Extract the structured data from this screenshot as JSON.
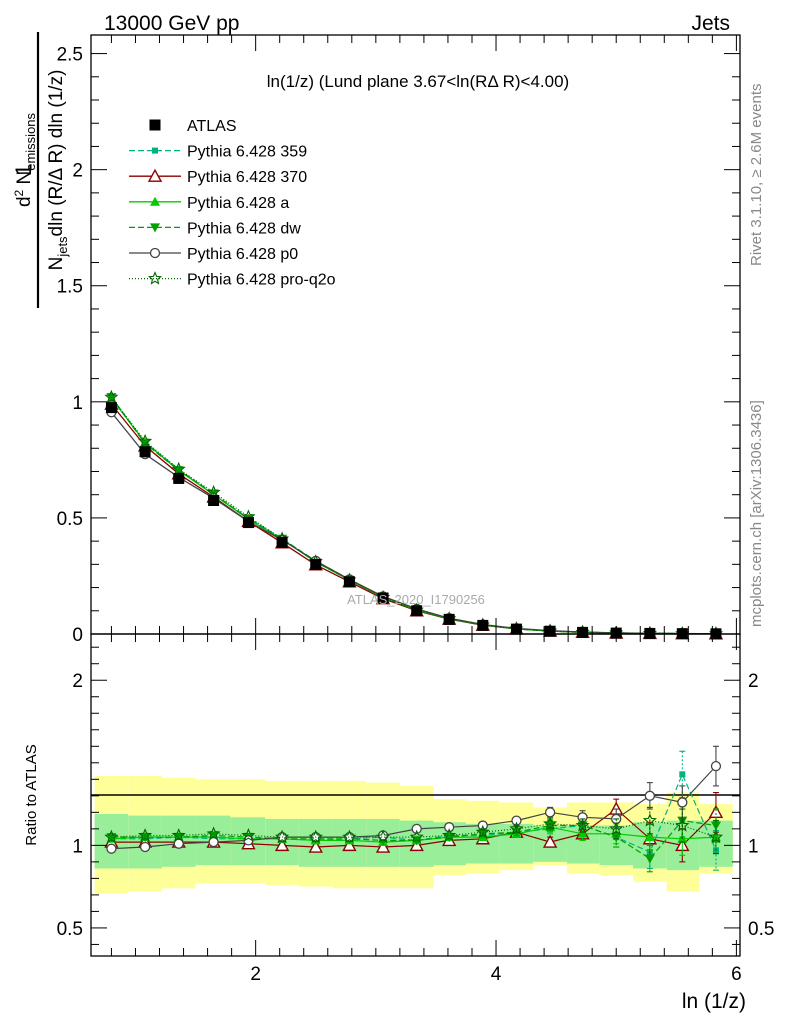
{
  "header": {
    "left": "13000 GeV pp",
    "right": "Jets"
  },
  "side_text": {
    "rivet": "Rivet 3.1.10, ≥ 2.6M events",
    "mcplots": "mcplots.cern.ch [arXiv:1306.3436]"
  },
  "watermark": "ATLAS_2020_I1790256",
  "colors": {
    "atlas": "#000000",
    "p359": "#00b380",
    "p370": "#8b0000",
    "pa": "#00cc00",
    "pdw": "#00a000",
    "pp0": "#444444",
    "pq2o": "#006600",
    "band_green": "#99ee99",
    "band_yellow": "#ffff99"
  },
  "chart_data": [
    {
      "type": "line",
      "title": "ln(1/z) (Lund plane 3.67<ln(RΔ R)<4.00)",
      "xlabel": "ln (1/z)",
      "ylabel": "1/N_jets d²N_emissions/dln(R/ΔR) dln(1/z)",
      "xlim": [
        0.63,
        6.03
      ],
      "ylim": [
        0,
        2.58
      ],
      "x_ticks": [
        "2",
        "4",
        "6"
      ],
      "y_ticks": [
        "0",
        "0.5",
        "1",
        "1.5",
        "2",
        "2.5"
      ],
      "legend_position": "top-left",
      "x": [
        0.8,
        1.08,
        1.36,
        1.65,
        1.94,
        2.22,
        2.5,
        2.78,
        3.06,
        3.34,
        3.61,
        3.89,
        4.17,
        4.45,
        4.72,
        5.0,
        5.28,
        5.55,
        5.83
      ],
      "series": [
        {
          "name": "ATLAS",
          "key": "atlas",
          "marker": "square-filled",
          "dash": "none",
          "values": [
            0.975,
            0.785,
            0.67,
            0.575,
            0.48,
            0.395,
            0.3,
            0.225,
            0.155,
            0.1,
            0.063,
            0.037,
            0.021,
            0.012,
            0.007,
            0.004,
            0.0025,
            0.0015,
            0.0008
          ]
        },
        {
          "name": "Pythia 6.428 359",
          "key": "p359",
          "marker": "square-small",
          "dash": "6,3",
          "values": [
            1.02,
            0.825,
            0.71,
            0.6,
            0.5,
            0.41,
            0.315,
            0.235,
            0.16,
            0.104,
            0.066,
            0.039,
            0.022,
            0.013,
            0.0075,
            0.0043,
            0.0027,
            0.0016,
            0.0009
          ]
        },
        {
          "name": "Pythia 6.428 370",
          "key": "p370",
          "marker": "triangle-open",
          "dash": "none",
          "values": [
            0.99,
            0.81,
            0.69,
            0.59,
            0.485,
            0.393,
            0.298,
            0.225,
            0.152,
            0.1,
            0.064,
            0.038,
            0.022,
            0.0125,
            0.0073,
            0.0042,
            0.0026,
            0.0015,
            0.0008
          ]
        },
        {
          "name": "Pythia 6.428 a",
          "key": "pa",
          "marker": "triangle-filled",
          "dash": "none",
          "values": [
            1.015,
            0.825,
            0.705,
            0.6,
            0.495,
            0.408,
            0.31,
            0.232,
            0.158,
            0.103,
            0.066,
            0.039,
            0.022,
            0.013,
            0.0075,
            0.0043,
            0.0027,
            0.0016,
            0.0009
          ]
        },
        {
          "name": "Pythia 6.428 dw",
          "key": "pdw",
          "marker": "triangle-down-filled",
          "dash": "6,3",
          "values": [
            1.02,
            0.82,
            0.705,
            0.605,
            0.495,
            0.41,
            0.31,
            0.233,
            0.158,
            0.103,
            0.066,
            0.039,
            0.022,
            0.013,
            0.0075,
            0.0043,
            0.0027,
            0.0016,
            0.0009
          ]
        },
        {
          "name": "Pythia 6.428 p0",
          "key": "pp0",
          "marker": "circle-open",
          "dash": "none",
          "values": [
            0.955,
            0.775,
            0.675,
            0.585,
            0.485,
            0.405,
            0.315,
            0.235,
            0.162,
            0.108,
            0.068,
            0.041,
            0.024,
            0.0145,
            0.0085,
            0.0046,
            0.0032,
            0.002,
            0.001
          ]
        },
        {
          "name": "Pythia 6.428 pro-q2o",
          "key": "pq2o",
          "marker": "star-open",
          "dash": "1,2",
          "values": [
            1.02,
            0.83,
            0.71,
            0.61,
            0.505,
            0.41,
            0.312,
            0.233,
            0.158,
            0.103,
            0.066,
            0.039,
            0.022,
            0.013,
            0.0075,
            0.0043,
            0.0027,
            0.0016,
            0.0009
          ]
        }
      ]
    },
    {
      "type": "line",
      "ylabel": "Ratio to ATLAS",
      "xlim": [
        0.63,
        6.03
      ],
      "ylim": [
        0.33,
        2.28
      ],
      "y_ticks": [
        "0.5",
        "1",
        "2"
      ],
      "x": [
        0.8,
        1.08,
        1.36,
        1.65,
        1.94,
        2.22,
        2.5,
        2.78,
        3.06,
        3.34,
        3.61,
        3.89,
        4.17,
        4.45,
        4.72,
        5.0,
        5.28,
        5.55,
        5.83
      ],
      "bins": [
        [
          0.66,
          0.94
        ],
        [
          0.94,
          1.22
        ],
        [
          1.22,
          1.5
        ],
        [
          1.5,
          1.79
        ],
        [
          1.79,
          2.08
        ],
        [
          2.08,
          2.36
        ],
        [
          2.36,
          2.64
        ],
        [
          2.64,
          2.92
        ],
        [
          2.92,
          3.2
        ],
        [
          3.2,
          3.48
        ],
        [
          3.48,
          3.75
        ],
        [
          3.75,
          4.03
        ],
        [
          4.03,
          4.31
        ],
        [
          4.31,
          4.59
        ],
        [
          4.59,
          4.86
        ],
        [
          4.86,
          5.14
        ],
        [
          5.14,
          5.42
        ],
        [
          5.42,
          5.69
        ],
        [
          5.69,
          5.97
        ]
      ],
      "band_yellow": [
        [
          0.71,
          1.42
        ],
        [
          0.72,
          1.42
        ],
        [
          0.74,
          1.41
        ],
        [
          0.77,
          1.4
        ],
        [
          0.77,
          1.4
        ],
        [
          0.76,
          1.39
        ],
        [
          0.75,
          1.39
        ],
        [
          0.74,
          1.39
        ],
        [
          0.74,
          1.38
        ],
        [
          0.74,
          1.36
        ],
        [
          0.82,
          1.28
        ],
        [
          0.83,
          1.27
        ],
        [
          0.85,
          1.26
        ],
        [
          0.88,
          1.23
        ],
        [
          0.83,
          1.26
        ],
        [
          0.82,
          1.26
        ],
        [
          0.78,
          1.25
        ],
        [
          0.72,
          1.32
        ],
        [
          0.83,
          1.25
        ]
      ],
      "band_green": [
        [
          0.86,
          1.19
        ],
        [
          0.86,
          1.18
        ],
        [
          0.87,
          1.18
        ],
        [
          0.88,
          1.18
        ],
        [
          0.88,
          1.17
        ],
        [
          0.88,
          1.16
        ],
        [
          0.87,
          1.16
        ],
        [
          0.87,
          1.16
        ],
        [
          0.87,
          1.16
        ],
        [
          0.87,
          1.15
        ],
        [
          0.88,
          1.14
        ],
        [
          0.89,
          1.13
        ],
        [
          0.89,
          1.13
        ],
        [
          0.9,
          1.12
        ],
        [
          0.89,
          1.12
        ],
        [
          0.88,
          1.12
        ],
        [
          0.86,
          1.14
        ],
        [
          0.85,
          1.15
        ],
        [
          0.87,
          1.15
        ]
      ],
      "series": [
        {
          "name": "Pythia 6.428 359",
          "key": "p359",
          "marker": "square-small",
          "dash": "6,3",
          "values": [
            1.04,
            1.04,
            1.05,
            1.04,
            1.04,
            1.04,
            1.03,
            1.04,
            1.05,
            1.03,
            1.06,
            1.06,
            1.08,
            1.1,
            1.12,
            1.05,
            0.96,
            1.43,
            0.97
          ],
          "err": [
            0.01,
            0.01,
            0.01,
            0.01,
            0.01,
            0.01,
            0.01,
            0.01,
            0.01,
            0.01,
            0.01,
            0.02,
            0.02,
            0.03,
            0.04,
            0.06,
            0.1,
            0.14,
            0.12
          ]
        },
        {
          "name": "Pythia 6.428 370",
          "key": "p370",
          "marker": "triangle-open",
          "dash": "none",
          "values": [
            1.02,
            1.02,
            1.02,
            1.02,
            1.01,
            1.0,
            0.99,
            1.0,
            0.99,
            1.0,
            1.03,
            1.04,
            1.08,
            1.02,
            1.07,
            1.22,
            1.04,
            1.0,
            1.2
          ],
          "err": [
            0.01,
            0.01,
            0.01,
            0.01,
            0.01,
            0.01,
            0.01,
            0.01,
            0.01,
            0.01,
            0.01,
            0.02,
            0.02,
            0.03,
            0.04,
            0.06,
            0.1,
            0.1,
            0.12
          ]
        },
        {
          "name": "Pythia 6.428 a",
          "key": "pa",
          "marker": "triangle-filled",
          "dash": "none",
          "values": [
            1.04,
            1.05,
            1.05,
            1.05,
            1.04,
            1.04,
            1.03,
            1.03,
            1.02,
            1.03,
            1.05,
            1.05,
            1.07,
            1.11,
            1.07,
            1.07,
            1.05,
            1.04,
            1.05
          ],
          "err": [
            0.01,
            0.01,
            0.01,
            0.01,
            0.01,
            0.01,
            0.01,
            0.01,
            0.01,
            0.01,
            0.01,
            0.02,
            0.02,
            0.03,
            0.04,
            0.06,
            0.08,
            0.1,
            0.1
          ]
        },
        {
          "name": "Pythia 6.428 dw",
          "key": "pdw",
          "marker": "triangle-down-filled",
          "dash": "6,3",
          "values": [
            1.05,
            1.05,
            1.05,
            1.06,
            1.05,
            1.04,
            1.04,
            1.04,
            1.03,
            1.03,
            1.05,
            1.07,
            1.08,
            1.12,
            1.12,
            1.05,
            0.92,
            1.15,
            1.12
          ],
          "err": [
            0.01,
            0.01,
            0.01,
            0.01,
            0.01,
            0.01,
            0.01,
            0.01,
            0.01,
            0.01,
            0.01,
            0.02,
            0.02,
            0.03,
            0.04,
            0.06,
            0.08,
            0.1,
            0.1
          ]
        },
        {
          "name": "Pythia 6.428 p0",
          "key": "pp0",
          "marker": "circle-open",
          "dash": "none",
          "values": [
            0.98,
            0.99,
            1.01,
            1.02,
            1.03,
            1.05,
            1.05,
            1.05,
            1.06,
            1.1,
            1.11,
            1.12,
            1.15,
            1.2,
            1.17,
            1.16,
            1.3,
            1.26,
            1.48
          ],
          "err": [
            0.01,
            0.01,
            0.01,
            0.01,
            0.01,
            0.01,
            0.01,
            0.01,
            0.01,
            0.01,
            0.01,
            0.02,
            0.02,
            0.03,
            0.04,
            0.06,
            0.08,
            0.1,
            0.12
          ]
        },
        {
          "name": "Pythia 6.428 pro-q2o",
          "key": "pq2o",
          "marker": "star-open",
          "dash": "1,2",
          "values": [
            1.05,
            1.06,
            1.06,
            1.07,
            1.06,
            1.05,
            1.05,
            1.05,
            1.05,
            1.05,
            1.06,
            1.08,
            1.1,
            1.13,
            1.12,
            1.1,
            1.15,
            1.12,
            1.05
          ],
          "err": [
            0.01,
            0.01,
            0.01,
            0.01,
            0.01,
            0.01,
            0.01,
            0.01,
            0.01,
            0.01,
            0.01,
            0.02,
            0.02,
            0.03,
            0.04,
            0.06,
            0.08,
            0.1,
            0.1
          ]
        }
      ]
    }
  ]
}
